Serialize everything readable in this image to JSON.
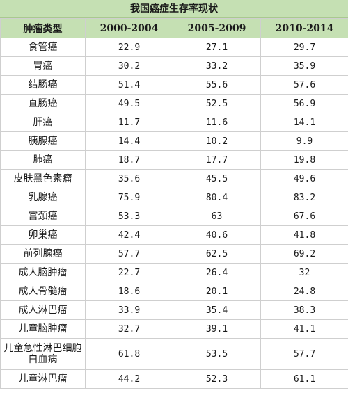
{
  "title": "我国癌症生存率现状",
  "columns": [
    "肿瘤类型",
    "2000-2004",
    "2005-2009",
    "2010-2014"
  ],
  "rows": [
    {
      "name": "食管癌",
      "v1": "22.9",
      "v2": "27.1",
      "v3": "29.7"
    },
    {
      "name": "胃癌",
      "v1": "30.2",
      "v2": "33.2",
      "v3": "35.9"
    },
    {
      "name": "结肠癌",
      "v1": "51.4",
      "v2": "55.6",
      "v3": "57.6"
    },
    {
      "name": "直肠癌",
      "v1": "49.5",
      "v2": "52.5",
      "v3": "56.9"
    },
    {
      "name": "肝癌",
      "v1": "11.7",
      "v2": "11.6",
      "v3": "14.1"
    },
    {
      "name": "胰腺癌",
      "v1": "14.4",
      "v2": "10.2",
      "v3": "9.9"
    },
    {
      "name": "肺癌",
      "v1": "18.7",
      "v2": "17.7",
      "v3": "19.8"
    },
    {
      "name": "皮肤黑色素瘤",
      "v1": "35.6",
      "v2": "45.5",
      "v3": "49.6"
    },
    {
      "name": "乳腺癌",
      "v1": "75.9",
      "v2": "80.4",
      "v3": "83.2"
    },
    {
      "name": "宫颈癌",
      "v1": "53.3",
      "v2": "63",
      "v3": "67.6"
    },
    {
      "name": "卵巢癌",
      "v1": "42.4",
      "v2": "40.6",
      "v3": "41.8"
    },
    {
      "name": "前列腺癌",
      "v1": "57.7",
      "v2": "62.5",
      "v3": "69.2"
    },
    {
      "name": "成人脑肿瘤",
      "v1": "22.7",
      "v2": "26.4",
      "v3": "32"
    },
    {
      "name": "成人骨髓瘤",
      "v1": "18.6",
      "v2": "20.1",
      "v3": "24.8"
    },
    {
      "name": "成人淋巴瘤",
      "v1": "33.9",
      "v2": "35.4",
      "v3": "38.3"
    },
    {
      "name": "儿童脑肿瘤",
      "v1": "32.7",
      "v2": "39.1",
      "v3": "41.1"
    },
    {
      "name": "儿童急性淋巴细胞白血病",
      "v1": "61.8",
      "v2": "53.5",
      "v3": "57.7"
    },
    {
      "name": "儿童淋巴瘤",
      "v1": "44.2",
      "v2": "52.3",
      "v3": "61.1"
    }
  ],
  "colors": {
    "header_bg": "#c5e0b3",
    "grid": "#cfcfcf"
  }
}
